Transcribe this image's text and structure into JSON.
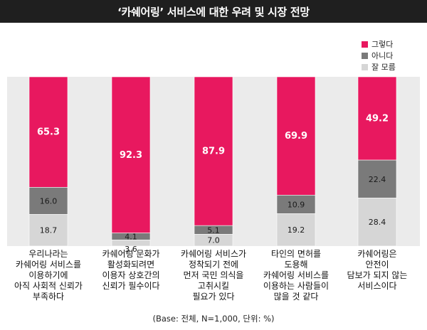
{
  "title": "‘카쉐어링’ 서비스에 대한 우려 및 시장 전망",
  "footnote": "(Base: 전체, N=1,000, 단위: %)",
  "colors": {
    "yes": "#e8185f",
    "no": "#7a7a7a",
    "unknown": "#d6d6d6",
    "panel": "#ebebeb",
    "title_bg": "#1f1f1f"
  },
  "chart_data": {
    "type": "bar",
    "stacked": true,
    "orientation": "vertical",
    "title": "‘카쉐어링’ 서비스에 대한 우려 및 시장 전망",
    "ylim": [
      0,
      100
    ],
    "legend_position": "top-right",
    "categories": [
      "우리나라는\n카쉐어링 서비스를\n이용하기에\n아직 사회적 신뢰가\n부족하다",
      "카쉐어링 문화가\n활성화되려면\n이용자 상호간의\n신뢰가 필수이다",
      "카쉐어링 서비스가\n정착되기 전에\n먼저 국민 의식을\n고취시킬\n필요가 있다",
      "타인의 면허를\n도용해\n카쉐어링 서비스를\n이용하는 사람들이\n많을 것 같다",
      "카쉐어링은\n안전이\n담보가 되지 않는\n서비스이다"
    ],
    "series": [
      {
        "name": "그렇다",
        "values": [
          65.3,
          92.3,
          87.9,
          69.9,
          49.2
        ]
      },
      {
        "name": "아니다",
        "values": [
          16.0,
          4.1,
          5.1,
          10.9,
          22.4
        ]
      },
      {
        "name": "잘 모름",
        "values": [
          18.7,
          3.6,
          7.0,
          19.2,
          28.4
        ]
      }
    ]
  }
}
